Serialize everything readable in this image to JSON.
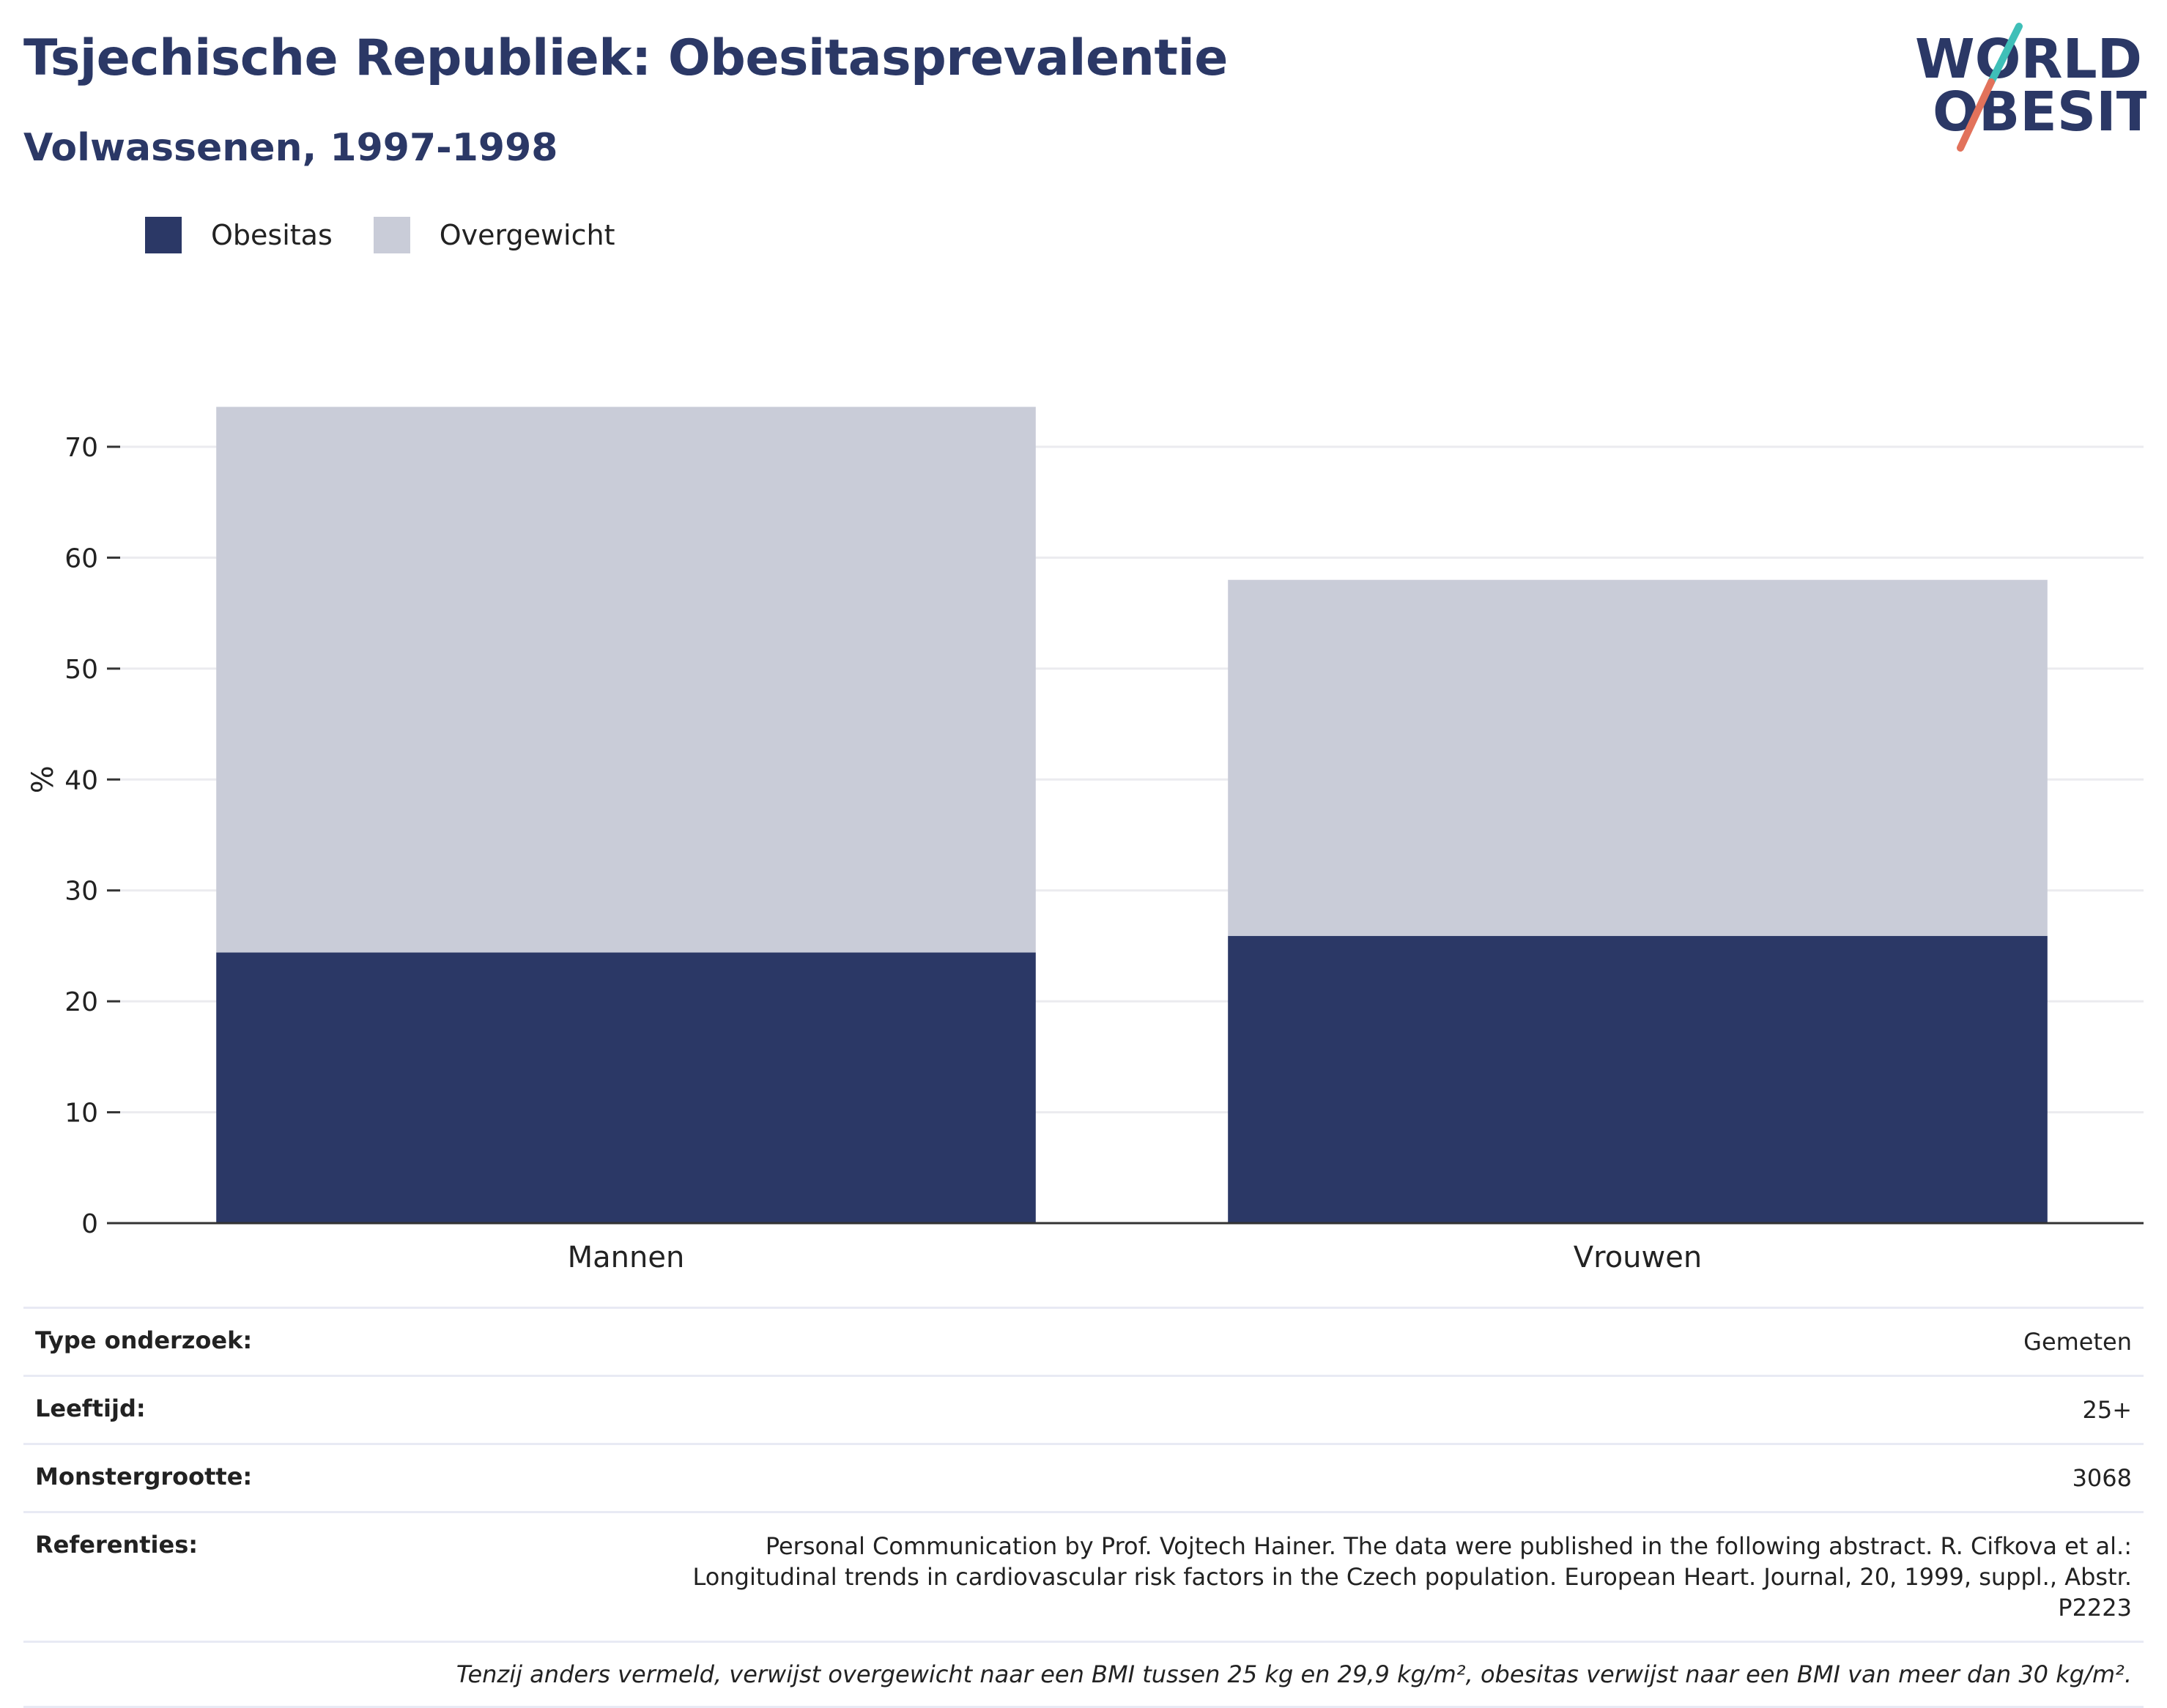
{
  "header": {
    "title": "Tsjechische Republiek: Obesitasprevalentie",
    "subtitle": "Volwassenen, 1997-1998"
  },
  "logo": {
    "line1": "WORLD",
    "line2": "OBESITY",
    "colors": {
      "text": "#2b3866",
      "slash_top": "#3fbfb8",
      "slash_bottom": "#e2725b"
    }
  },
  "legend": [
    {
      "label": "Obesitas",
      "color": "#2b3866"
    },
    {
      "label": "Overgewicht",
      "color": "#c9ccd8"
    }
  ],
  "chart_data": {
    "type": "bar",
    "stacked": true,
    "categories": [
      "Mannen",
      "Vrouwen"
    ],
    "series": [
      {
        "name": "Obesitas",
        "values": [
          24.4,
          25.9
        ],
        "color": "#2b3866"
      },
      {
        "name": "Overgewicht",
        "values": [
          49.2,
          32.1
        ],
        "color": "#c9ccd8"
      }
    ],
    "ylabel": "%",
    "ylim": [
      0,
      75
    ],
    "yticks": [
      0,
      10,
      20,
      30,
      40,
      50,
      60,
      70
    ],
    "grid": true,
    "legend_position": "top-left"
  },
  "info": {
    "rows": [
      {
        "key": "Type onderzoek:",
        "value": "Gemeten"
      },
      {
        "key": "Leeftijd:",
        "value": "25+"
      },
      {
        "key": "Monstergrootte:",
        "value": "3068"
      },
      {
        "key": "Referenties:",
        "value": "Personal Communication by Prof. Vojtech Hainer. The data were published in the following abstract. R. Cifkova et al.: Longitudinal trends in cardiovascular risk factors in the Czech population. European Heart. Journal, 20, 1999, suppl., Abstr. P2223"
      }
    ],
    "note": "Tenzij anders vermeld, verwijst overgewicht naar een BMI tussen 25 kg en 29,9 kg/m², obesitas verwijst naar een BMI van meer dan 30 kg/m²."
  }
}
